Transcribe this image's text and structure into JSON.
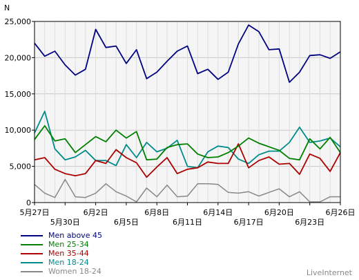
{
  "chart_data": {
    "type": "line",
    "ylabel": "N",
    "ylim": [
      0,
      25000
    ],
    "yticks": [
      "0",
      "5,000",
      "10,000",
      "15,000",
      "20,000",
      "25,000"
    ],
    "ytick_values": [
      0,
      5000,
      10000,
      15000,
      20000,
      25000
    ],
    "xtick_labels": [
      "5月27日",
      "5月30日",
      "6月2日",
      "6月5日",
      "6月8日",
      "6月11日",
      "6月14日",
      "6月17日",
      "6月20日",
      "6月23日",
      "6月26日"
    ],
    "xtick_index": [
      0,
      3,
      6,
      9,
      12,
      15,
      18,
      21,
      24,
      27,
      30
    ],
    "x": [
      "5月27日",
      "5月28日",
      "5月29日",
      "5月30日",
      "5月31日",
      "6月1日",
      "6月2日",
      "6月3日",
      "6月4日",
      "6月5日",
      "6月6日",
      "6月7日",
      "6月8日",
      "6月9日",
      "6月10日",
      "6月11日",
      "6月12日",
      "6月13日",
      "6月14日",
      "6月15日",
      "6月16日",
      "6月17日",
      "6月18日",
      "6月19日",
      "6月20日",
      "6月21日",
      "6月22日",
      "6月23日",
      "6月24日",
      "6月25日",
      "6月26日"
    ],
    "grid": true,
    "legend_position": "bottom-left",
    "series": [
      {
        "name": "Men above 45",
        "color": "#000080",
        "values": [
          22000,
          20200,
          20900,
          19000,
          17600,
          18400,
          23900,
          21400,
          21600,
          19200,
          21100,
          17100,
          18000,
          19500,
          20900,
          21600,
          17800,
          18400,
          17000,
          18000,
          21900,
          24500,
          23600,
          21100,
          21200,
          16600,
          18000,
          20300,
          20400,
          19900,
          20800
        ]
      },
      {
        "name": "Men 25-34",
        "color": "#008000",
        "values": [
          8700,
          10600,
          8500,
          8800,
          6900,
          8000,
          9100,
          8400,
          10000,
          8900,
          9800,
          5900,
          6000,
          7600,
          8000,
          8100,
          6700,
          6200,
          6300,
          6900,
          7800,
          8900,
          8200,
          7700,
          7200,
          6100,
          5900,
          8800,
          7400,
          9000,
          6900
        ]
      },
      {
        "name": "Men 35-44",
        "color": "#aa0000",
        "values": [
          5900,
          6200,
          4600,
          4000,
          3700,
          4000,
          5800,
          5400,
          7300,
          6200,
          5500,
          3500,
          4900,
          6200,
          4000,
          4600,
          4800,
          5600,
          5400,
          5400,
          8100,
          4800,
          5800,
          6300,
          5300,
          5400,
          3900,
          6700,
          6100,
          4300,
          6900
        ]
      },
      {
        "name": "Men 18-24",
        "color": "#008b8b",
        "values": [
          9600,
          12600,
          7400,
          5900,
          6300,
          7200,
          5800,
          5800,
          5100,
          8000,
          6200,
          8300,
          7000,
          7500,
          8600,
          5000,
          4800,
          7000,
          7800,
          7600,
          6000,
          5400,
          6600,
          7100,
          7100,
          8300,
          10400,
          8300,
          8500,
          8900,
          7700
        ]
      },
      {
        "name": "Women 18-24",
        "color": "#888888",
        "values": [
          2500,
          1300,
          700,
          3200,
          800,
          700,
          1300,
          2600,
          1500,
          900,
          100,
          2000,
          800,
          2400,
          800,
          900,
          2600,
          2600,
          2500,
          1400,
          1300,
          1500,
          900,
          1400,
          1900,
          800,
          1500,
          100,
          100,
          800,
          800
        ]
      }
    ]
  },
  "brand": "LiveInternet"
}
